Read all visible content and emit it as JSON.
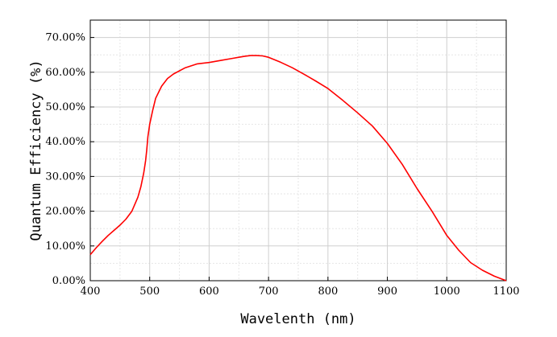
{
  "chart_data": {
    "type": "line",
    "title": "",
    "xlabel": "Wavelenth (nm)",
    "ylabel": "Quantum Efficiency (%)",
    "xlim": [
      400,
      1100
    ],
    "ylim": [
      0,
      0.75
    ],
    "x_ticks": [
      400,
      500,
      600,
      700,
      800,
      900,
      1000,
      1100
    ],
    "x_tick_labels": [
      "400",
      "500",
      "600",
      "700",
      "800",
      "900",
      "1000",
      "1100"
    ],
    "y_ticks": [
      0,
      0.1,
      0.2,
      0.3,
      0.4,
      0.5,
      0.6,
      0.7
    ],
    "y_tick_labels": [
      "0.00%",
      "10.00%",
      "20.00%",
      "30.00%",
      "40.00%",
      "50.00%",
      "60.00%",
      "70.00%"
    ],
    "grid": true,
    "legend": "none",
    "line_color": "#ff0000",
    "series": [
      {
        "x": [
          400,
          410,
          420,
          430,
          440,
          450,
          460,
          470,
          480,
          485,
          490,
          493,
          495,
          497,
          500,
          505,
          510,
          520,
          530,
          540,
          560,
          580,
          600,
          620,
          640,
          650,
          660,
          670,
          680,
          690,
          700,
          710,
          720,
          740,
          760,
          780,
          800,
          825,
          850,
          875,
          900,
          925,
          950,
          975,
          1000,
          1020,
          1040,
          1060,
          1080,
          1100
        ],
        "y": [
          0.075,
          0.095,
          0.113,
          0.13,
          0.145,
          0.16,
          0.177,
          0.2,
          0.24,
          0.27,
          0.31,
          0.345,
          0.375,
          0.415,
          0.45,
          0.49,
          0.525,
          0.56,
          0.582,
          0.595,
          0.613,
          0.624,
          0.628,
          0.634,
          0.64,
          0.643,
          0.646,
          0.648,
          0.648,
          0.647,
          0.643,
          0.636,
          0.629,
          0.613,
          0.594,
          0.574,
          0.553,
          0.519,
          0.483,
          0.445,
          0.395,
          0.335,
          0.265,
          0.2,
          0.13,
          0.088,
          0.052,
          0.03,
          0.013,
          0.0
        ]
      }
    ]
  }
}
